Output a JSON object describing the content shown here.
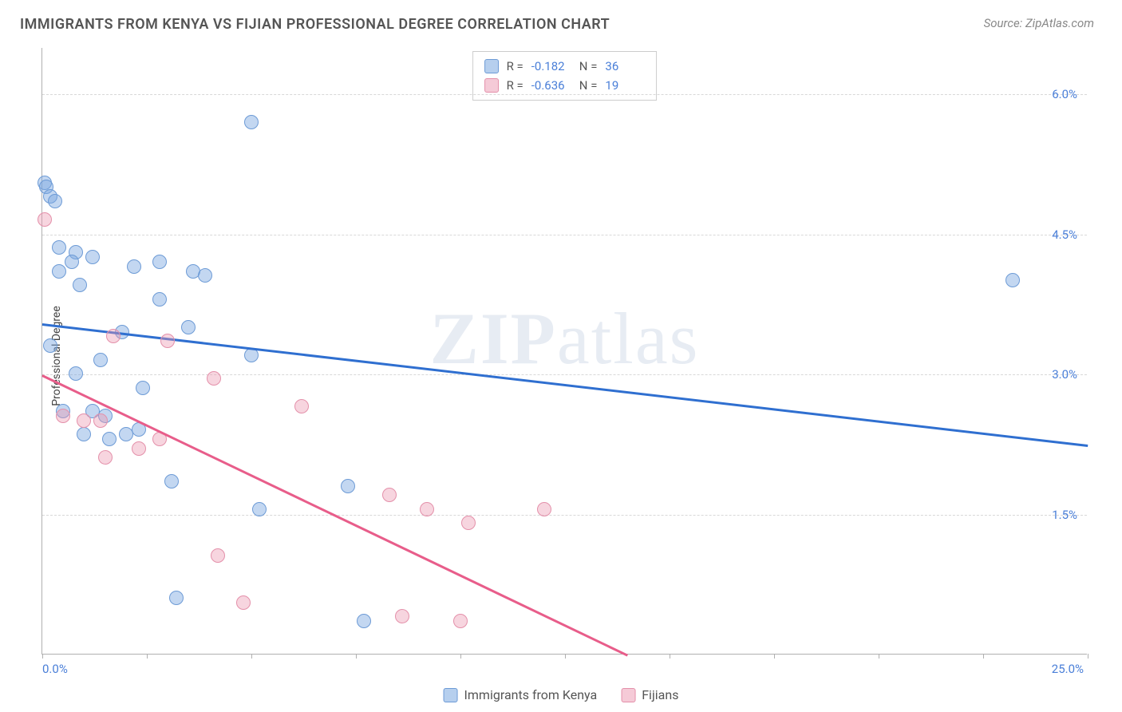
{
  "header": {
    "title": "IMMIGRANTS FROM KENYA VS FIJIAN PROFESSIONAL DEGREE CORRELATION CHART",
    "source_prefix": "Source: ",
    "source_name": "ZipAtlas.com"
  },
  "watermark": {
    "zip": "ZIP",
    "atlas": "atlas"
  },
  "chart": {
    "type": "scatter",
    "ylabel": "Professional Degree",
    "xlim": [
      0.0,
      25.0
    ],
    "ylim": [
      0.0,
      6.5
    ],
    "y_gridlines": [
      1.5,
      3.0,
      4.5,
      6.0
    ],
    "y_tick_labels": [
      "1.5%",
      "3.0%",
      "4.5%",
      "6.0%"
    ],
    "x_tick_positions": [
      0,
      2.5,
      5,
      7.5,
      10,
      12.5,
      15,
      17.5,
      20,
      22.5,
      25
    ],
    "x_range_labels": {
      "min": "0.0%",
      "max": "25.0%"
    },
    "grid_color": "#d8d8d8",
    "axis_color": "#b0b0b0",
    "background_color": "#ffffff",
    "tick_label_color": "#4a7fd8",
    "series": [
      {
        "id": "kenya",
        "label": "Immigrants from Kenya",
        "color_fill": "rgba(122,167,224,0.45)",
        "color_stroke": "#6d9bd6",
        "marker_radius": 9,
        "line_color": "#2f6fd0",
        "line_width": 2.5,
        "trend": {
          "x1": 0.0,
          "y1": 3.55,
          "x2": 25.0,
          "y2": 2.25
        },
        "stats": {
          "R": "-0.182",
          "N": "36"
        },
        "points": [
          [
            0.05,
            5.05
          ],
          [
            0.1,
            5.0
          ],
          [
            0.2,
            4.9
          ],
          [
            0.3,
            4.85
          ],
          [
            0.4,
            4.35
          ],
          [
            0.8,
            4.3
          ],
          [
            1.2,
            4.25
          ],
          [
            0.4,
            4.1
          ],
          [
            0.7,
            4.2
          ],
          [
            2.2,
            4.15
          ],
          [
            2.8,
            4.2
          ],
          [
            3.6,
            4.1
          ],
          [
            3.9,
            4.05
          ],
          [
            0.9,
            3.95
          ],
          [
            2.8,
            3.8
          ],
          [
            3.5,
            3.5
          ],
          [
            1.9,
            3.45
          ],
          [
            0.2,
            3.3
          ],
          [
            0.8,
            3.0
          ],
          [
            1.4,
            3.15
          ],
          [
            2.4,
            2.85
          ],
          [
            5.0,
            3.2
          ],
          [
            1.2,
            2.6
          ],
          [
            1.5,
            2.55
          ],
          [
            2.0,
            2.35
          ],
          [
            2.3,
            2.4
          ],
          [
            1.6,
            2.3
          ],
          [
            3.1,
            1.85
          ],
          [
            5.2,
            1.55
          ],
          [
            7.3,
            1.8
          ],
          [
            5.0,
            5.7
          ],
          [
            3.2,
            0.6
          ],
          [
            7.7,
            0.35
          ],
          [
            23.2,
            4.0
          ],
          [
            1.0,
            2.35
          ],
          [
            0.5,
            2.6
          ]
        ]
      },
      {
        "id": "fijians",
        "label": "Fijians",
        "color_fill": "rgba(235,150,175,0.40)",
        "color_stroke": "#e490aa",
        "marker_radius": 9,
        "line_color": "#e85d8a",
        "line_width": 2.5,
        "trend": {
          "x1": 0.0,
          "y1": 3.0,
          "x2": 14.0,
          "y2": 0.0
        },
        "stats": {
          "R": "-0.636",
          "N": "19"
        },
        "points": [
          [
            0.05,
            4.65
          ],
          [
            0.5,
            2.55
          ],
          [
            1.0,
            2.5
          ],
          [
            1.4,
            2.5
          ],
          [
            1.7,
            3.4
          ],
          [
            2.3,
            2.2
          ],
          [
            2.8,
            2.3
          ],
          [
            1.5,
            2.1
          ],
          [
            3.0,
            3.35
          ],
          [
            4.1,
            2.95
          ],
          [
            6.2,
            2.65
          ],
          [
            4.2,
            1.05
          ],
          [
            4.8,
            0.55
          ],
          [
            8.3,
            1.7
          ],
          [
            9.2,
            1.55
          ],
          [
            10.2,
            1.4
          ],
          [
            12.0,
            1.55
          ],
          [
            10.0,
            0.35
          ],
          [
            8.6,
            0.4
          ]
        ]
      }
    ],
    "stat_legend": {
      "r_label": "R =",
      "n_label": "N ="
    },
    "bottom_legend_swatches": [
      {
        "fill": "rgba(122,167,224,0.55)",
        "stroke": "#6d9bd6"
      },
      {
        "fill": "rgba(235,150,175,0.50)",
        "stroke": "#e490aa"
      }
    ]
  }
}
